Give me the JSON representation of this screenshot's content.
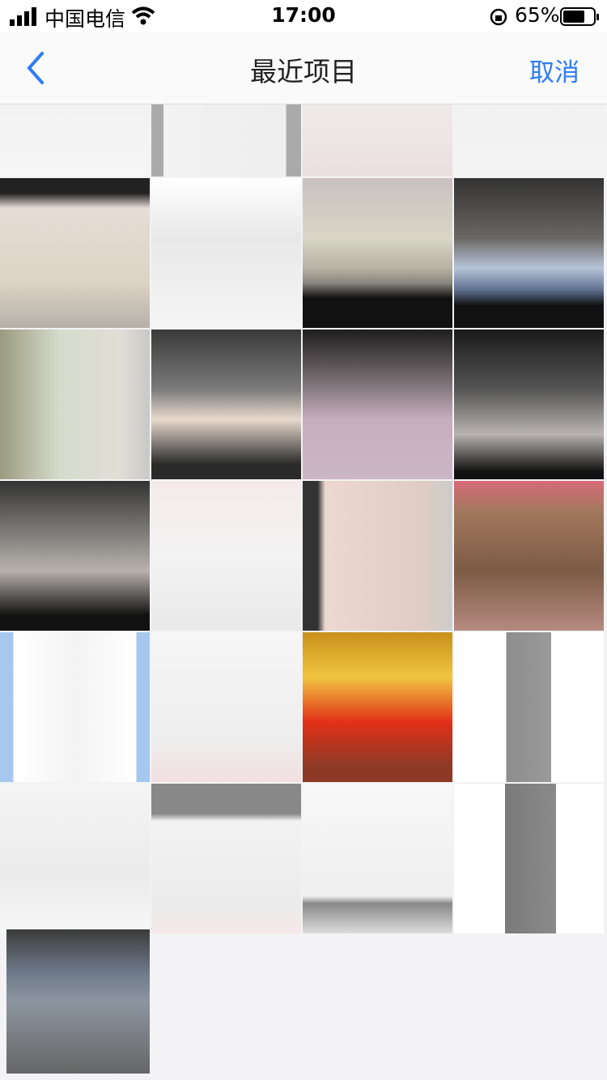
{
  "status_bar": {
    "carrier": "中国电信",
    "time": "17:00",
    "battery": "65%"
  },
  "nav": {
    "title": "最近项目",
    "cancel": "取消"
  }
}
